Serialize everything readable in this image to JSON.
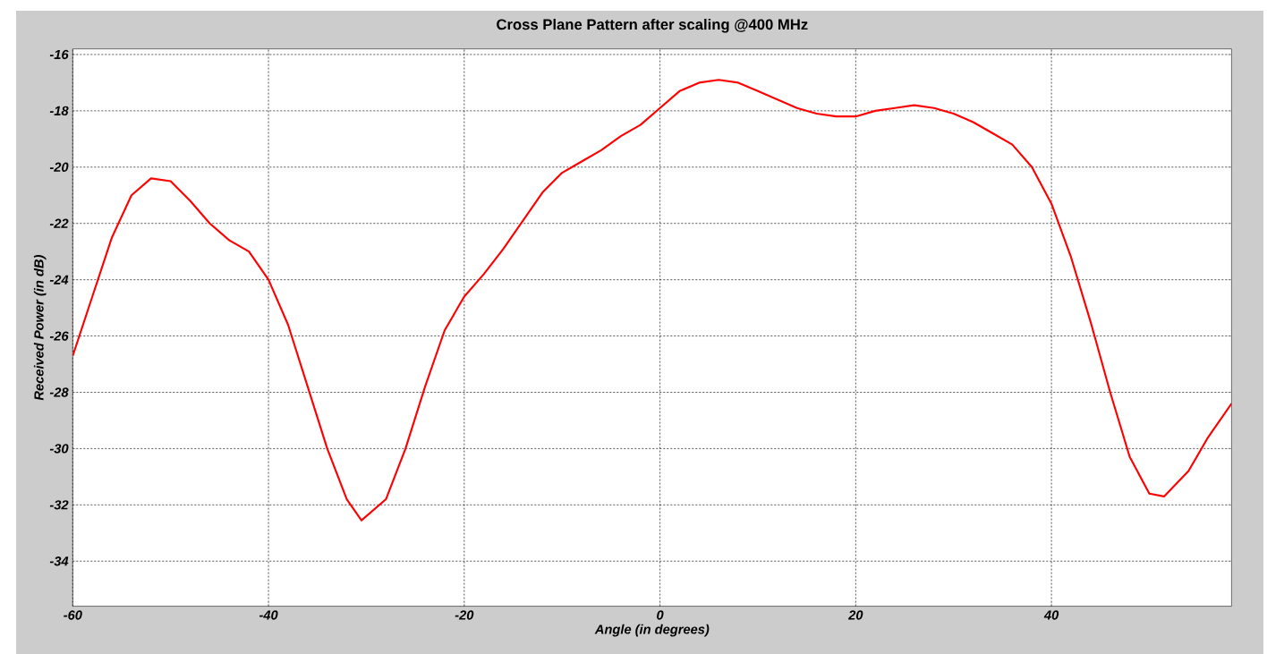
{
  "chart_data": {
    "type": "line",
    "title": "Cross Plane Pattern after scaling @400 MHz",
    "xlabel": "Angle (in degrees)",
    "ylabel": "Received Power (in dB)",
    "xlim": [
      -60,
      58.4
    ],
    "ylim": [
      -35.6,
      -15.8
    ],
    "xticks": [
      -60,
      -40,
      -20,
      0,
      20,
      40
    ],
    "yticks": [
      -34,
      -32,
      -30,
      -28,
      -26,
      -24,
      -22,
      -20,
      -18,
      -16
    ],
    "grid": true,
    "line_style": "solid",
    "series": [
      {
        "color": "#ff0000",
        "x": [
          -60,
          -58,
          -56,
          -54,
          -52,
          -50,
          -48,
          -46,
          -44,
          -42,
          -40,
          -38,
          -36,
          -34,
          -32,
          -30.5,
          -28,
          -26,
          -24,
          -22,
          -20,
          -18,
          -16,
          -14,
          -12,
          -10,
          -8,
          -6,
          -4,
          -2,
          0,
          2,
          4,
          6,
          8,
          10,
          12,
          14,
          16,
          18,
          20,
          22,
          24,
          26,
          28,
          30,
          32,
          34,
          36,
          38,
          40,
          42,
          44,
          46,
          48,
          50,
          51.5,
          54,
          56,
          58.4
        ],
        "values": [
          -26.7,
          -24.6,
          -22.5,
          -21.0,
          -20.4,
          -20.5,
          -21.2,
          -22.0,
          -22.6,
          -23.0,
          -24.0,
          -25.6,
          -27.8,
          -30.0,
          -31.8,
          -32.55,
          -31.8,
          -30.0,
          -27.8,
          -25.8,
          -24.6,
          -23.8,
          -22.9,
          -21.9,
          -20.9,
          -20.2,
          -19.8,
          -19.4,
          -18.9,
          -18.5,
          -17.9,
          -17.3,
          -17.0,
          -16.9,
          -17.0,
          -17.3,
          -17.6,
          -17.9,
          -18.1,
          -18.2,
          -18.2,
          -18.0,
          -17.9,
          -17.8,
          -17.9,
          -18.1,
          -18.4,
          -18.8,
          -19.2,
          -20.0,
          -21.3,
          -23.2,
          -25.5,
          -28.0,
          -30.3,
          -31.6,
          -31.7,
          -30.8,
          -29.6,
          -28.4
        ]
      }
    ]
  }
}
